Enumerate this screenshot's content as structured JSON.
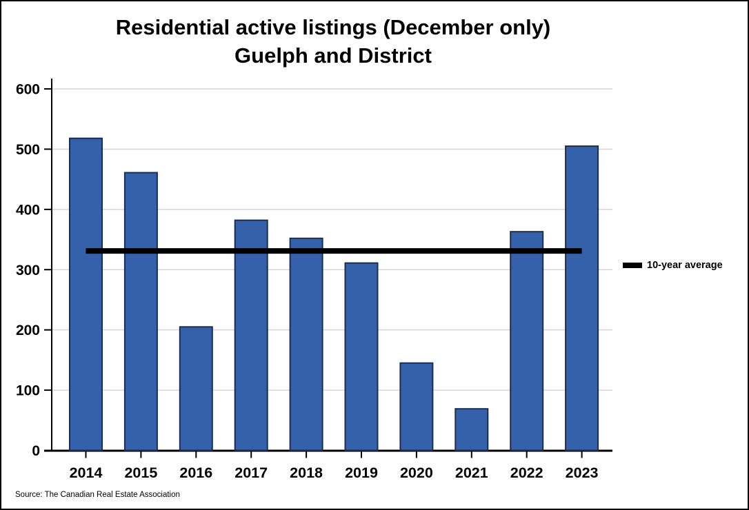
{
  "title": {
    "line1": "Residential active listings (December only)",
    "line2": "Guelph and District"
  },
  "legend": {
    "label": "10-year average"
  },
  "source": "Source: The Canadian Real Estate Association",
  "chart_data": {
    "type": "bar",
    "title": "Residential active listings (December only) Guelph and District",
    "categories": [
      "2014",
      "2015",
      "2016",
      "2017",
      "2018",
      "2019",
      "2020",
      "2021",
      "2022",
      "2023"
    ],
    "series": [
      {
        "name": "Residential active listings",
        "values": [
          518,
          461,
          205,
          382,
          352,
          311,
          145,
          69,
          363,
          505
        ]
      }
    ],
    "average_line": {
      "label": "10-year average",
      "value": 331
    },
    "xlabel": "",
    "ylabel": "",
    "ylim": [
      0,
      600
    ],
    "y_ticks": [
      0,
      100,
      200,
      300,
      400,
      500,
      600
    ],
    "grid": true,
    "legend_position": "right",
    "colors": {
      "bar_fill": "#3561AB",
      "bar_border": "#1C2E50",
      "average_line": "#000000",
      "gridline": "#D6D6D6",
      "axis": "#000000",
      "text": "#000000"
    }
  }
}
